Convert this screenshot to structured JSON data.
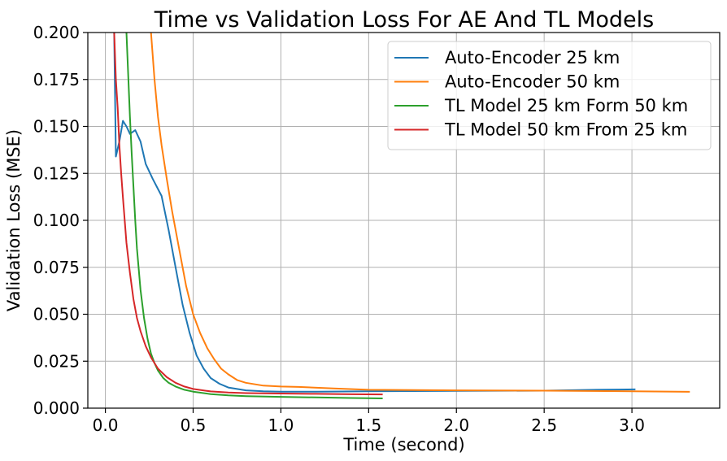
{
  "chart_data": {
    "type": "line",
    "title": "Time vs Validation Loss For AE And TL Models",
    "xlabel": "Time (second)",
    "ylabel": "Validation Loss (MSE)",
    "xlim": [
      -0.1,
      3.5
    ],
    "ylim": [
      0.0,
      0.2
    ],
    "xticks": [
      0.0,
      0.5,
      1.0,
      1.5,
      2.0,
      2.5,
      3.0
    ],
    "xtick_labels": [
      "0.0",
      "0.5",
      "1.0",
      "1.5",
      "2.0",
      "2.5",
      "3.0"
    ],
    "yticks": [
      0.0,
      0.025,
      0.05,
      0.075,
      0.1,
      0.125,
      0.15,
      0.175,
      0.2
    ],
    "ytick_labels": [
      "0.000",
      "0.025",
      "0.050",
      "0.075",
      "0.100",
      "0.125",
      "0.150",
      "0.175",
      "0.200"
    ],
    "grid": true,
    "legend_position": "top-right",
    "series": [
      {
        "name": "Auto-Encoder 25 km",
        "color": "#1f77b4",
        "x": [
          0.05,
          0.06,
          0.08,
          0.1,
          0.12,
          0.14,
          0.17,
          0.2,
          0.23,
          0.27,
          0.32,
          0.36,
          0.4,
          0.44,
          0.48,
          0.52,
          0.56,
          0.6,
          0.65,
          0.7,
          0.8,
          0.9,
          1.0,
          1.2,
          1.5,
          2.0,
          2.5,
          2.8,
          3.02
        ],
        "y": [
          0.2,
          0.134,
          0.142,
          0.153,
          0.15,
          0.146,
          0.148,
          0.142,
          0.13,
          0.122,
          0.113,
          0.095,
          0.075,
          0.055,
          0.04,
          0.028,
          0.021,
          0.016,
          0.013,
          0.011,
          0.0095,
          0.009,
          0.0088,
          0.0088,
          0.009,
          0.0092,
          0.0093,
          0.0098,
          0.01
        ]
      },
      {
        "name": "Auto-Encoder 50 km",
        "color": "#ff7f0e",
        "x": [
          0.26,
          0.28,
          0.3,
          0.32,
          0.35,
          0.38,
          0.42,
          0.46,
          0.5,
          0.54,
          0.58,
          0.62,
          0.66,
          0.7,
          0.75,
          0.8,
          0.9,
          1.0,
          1.1,
          1.3,
          1.5,
          2.0,
          2.5,
          3.0,
          3.33
        ],
        "y": [
          0.2,
          0.175,
          0.155,
          0.14,
          0.122,
          0.105,
          0.085,
          0.065,
          0.05,
          0.04,
          0.032,
          0.026,
          0.021,
          0.018,
          0.015,
          0.0135,
          0.012,
          0.0115,
          0.0113,
          0.0105,
          0.0098,
          0.0095,
          0.0093,
          0.009,
          0.0087
        ]
      },
      {
        "name": "TL Model 25 km Form 50 km",
        "color": "#2ca02c",
        "x": [
          0.12,
          0.13,
          0.14,
          0.15,
          0.16,
          0.17,
          0.18,
          0.2,
          0.22,
          0.24,
          0.26,
          0.28,
          0.3,
          0.33,
          0.36,
          0.4,
          0.45,
          0.5,
          0.6,
          0.7,
          0.8,
          1.0,
          1.2,
          1.4,
          1.58
        ],
        "y": [
          0.2,
          0.178,
          0.155,
          0.135,
          0.118,
          0.1,
          0.085,
          0.063,
          0.048,
          0.037,
          0.029,
          0.024,
          0.02,
          0.016,
          0.0135,
          0.0115,
          0.0098,
          0.0088,
          0.0075,
          0.0068,
          0.0064,
          0.006,
          0.0057,
          0.0054,
          0.0052
        ]
      },
      {
        "name": "TL Model 50 km From 25 km",
        "color": "#d62728",
        "x": [
          0.05,
          0.06,
          0.07,
          0.08,
          0.09,
          0.1,
          0.12,
          0.14,
          0.16,
          0.18,
          0.2,
          0.23,
          0.26,
          0.3,
          0.35,
          0.4,
          0.45,
          0.5,
          0.6,
          0.7,
          0.8,
          1.0,
          1.2,
          1.4,
          1.58
        ],
        "y": [
          0.2,
          0.175,
          0.16,
          0.14,
          0.125,
          0.112,
          0.088,
          0.072,
          0.058,
          0.048,
          0.041,
          0.033,
          0.027,
          0.021,
          0.0165,
          0.0135,
          0.0115,
          0.0102,
          0.0089,
          0.0083,
          0.008,
          0.0078,
          0.0076,
          0.0074,
          0.0073
        ]
      }
    ]
  }
}
